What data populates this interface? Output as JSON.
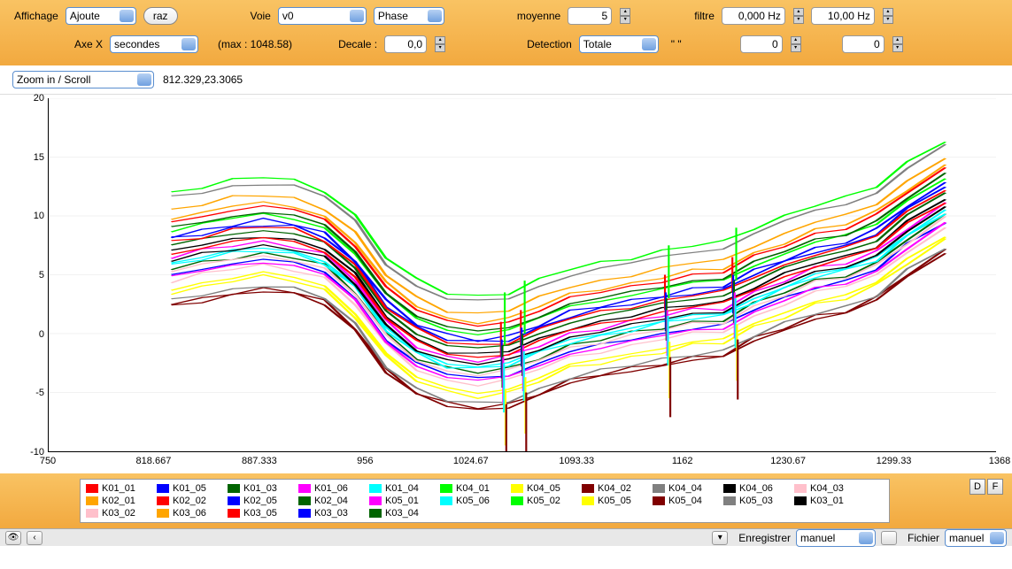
{
  "toolbar": {
    "affichage_label": "Affichage",
    "affichage_value": "Ajoute",
    "raz_label": "raz",
    "voie_label": "Voie",
    "voie_value": "v0",
    "phase_value": "Phase",
    "moyenne_label": "moyenne",
    "moyenne_value": "5",
    "filtre_label": "filtre",
    "filtre_low": "0,000 Hz",
    "filtre_high": "10,00 Hz",
    "axex_label": "Axe X",
    "axex_value": "secondes",
    "max_label": "(max : 1048.58)",
    "decale_label": "Decale :",
    "decale_value": "0,0",
    "detection_label": "Detection",
    "detection_value": "Totale",
    "quote_label": "\" \"",
    "det_v1": "0",
    "det_v2": "0"
  },
  "zoom": {
    "mode": "Zoom in / Scroll",
    "coords": "812.329,23.3065"
  },
  "chart": {
    "xlim": [
      750,
      1368
    ],
    "ylim": [
      -10,
      20
    ],
    "yticks": [
      -10,
      -5,
      0,
      5,
      10,
      15,
      20
    ],
    "xticks": [
      750,
      818.667,
      887.333,
      956,
      1024.67,
      1093.33,
      1162,
      1230.67,
      1299.33,
      1368
    ],
    "plot_bg": "#ffffff",
    "grid_color": "#e6e6e6",
    "x_data": [
      830,
      850,
      870,
      890,
      910,
      930,
      950,
      970,
      990,
      1010,
      1030,
      1050,
      1070,
      1090,
      1110,
      1130,
      1150,
      1170,
      1190,
      1210,
      1230,
      1250,
      1270,
      1290,
      1310,
      1335
    ],
    "series_offsets": [
      {
        "name": "K01_01",
        "color": "#ff0000",
        "off": 9.5
      },
      {
        "name": "K01_05",
        "color": "#0000ff",
        "off": 8.0
      },
      {
        "name": "K01_03",
        "color": "#006400",
        "off": 7.5
      },
      {
        "name": "K01_06",
        "color": "#ff00ff",
        "off": 6.5
      },
      {
        "name": "K01_04",
        "color": "#00ffff",
        "off": 6.0
      },
      {
        "name": "K04_01",
        "color": "#00ff00",
        "off": 12.0
      },
      {
        "name": "K04_05",
        "color": "#ffff00",
        "off": 3.8
      },
      {
        "name": "K04_02",
        "color": "#800000",
        "off": 2.5
      },
      {
        "name": "K04_04",
        "color": "#808080",
        "off": 11.5
      },
      {
        "name": "K04_06",
        "color": "#000000",
        "off": 7.0
      },
      {
        "name": "K04_03",
        "color": "#ffc0cb",
        "off": 4.5
      },
      {
        "name": "K02_01",
        "color": "#ffa500",
        "off": 9.8
      },
      {
        "name": "K02_02",
        "color": "#ff0000",
        "off": 7.8
      },
      {
        "name": "K02_05",
        "color": "#0000ff",
        "off": 5.0
      },
      {
        "name": "K02_04",
        "color": "#006400",
        "off": 5.5
      },
      {
        "name": "K05_01",
        "color": "#ff00ff",
        "off": 4.8
      },
      {
        "name": "K05_06",
        "color": "#00ffff",
        "off": 5.8
      },
      {
        "name": "K05_02",
        "color": "#00ff00",
        "off": 8.8
      },
      {
        "name": "K05_05",
        "color": "#ffff00",
        "off": 3.5
      },
      {
        "name": "K05_04",
        "color": "#800000",
        "off": 2.3
      },
      {
        "name": "K05_03",
        "color": "#808080",
        "off": 2.8
      },
      {
        "name": "K03_01",
        "color": "#000000",
        "off": 6.2
      },
      {
        "name": "K03_02",
        "color": "#ffc0cb",
        "off": 5.3
      },
      {
        "name": "K03_06",
        "color": "#ffa500",
        "off": 10.5
      },
      {
        "name": "K03_05",
        "color": "#ff0000",
        "off": 6.8
      },
      {
        "name": "K03_03",
        "color": "#0000ff",
        "off": 8.3
      },
      {
        "name": "K03_04",
        "color": "#006400",
        "off": 9.0
      }
    ],
    "base_shape": [
      0,
      0.5,
      1.0,
      1.3,
      1.0,
      0.2,
      -2.0,
      -5.5,
      -7.5,
      -8.5,
      -8.8,
      -8.5,
      -7.5,
      -6.5,
      -6.0,
      -5.5,
      -5.0,
      -4.5,
      -4.3,
      -3.0,
      -2.0,
      -1.0,
      -0.5,
      0.5,
      2.5,
      4.5
    ]
  },
  "legend_df": {
    "d": "D",
    "f": "F"
  },
  "bottom": {
    "enregistrer_label": "Enregistrer",
    "enregistrer_value": "manuel",
    "fichier_label": "Fichier",
    "fichier_value": "manuel"
  }
}
